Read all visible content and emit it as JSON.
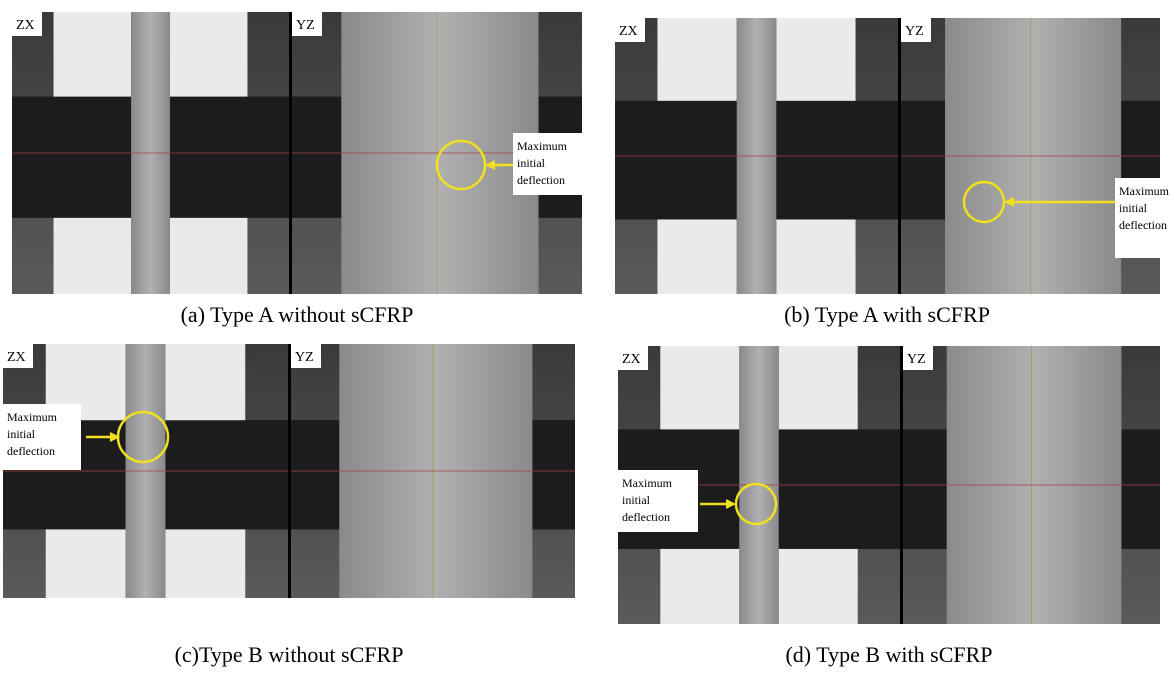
{
  "panels": [
    {
      "caption": "(a) Type A without sCFRP",
      "views": [
        "ZX",
        "YZ"
      ],
      "annotation": [
        "Maximum",
        "initial",
        "deflection"
      ]
    },
    {
      "caption": "(b) Type A with sCFRP",
      "views": [
        "ZX",
        "YZ"
      ],
      "annotation": [
        "Maximum",
        "initial",
        "deflection"
      ]
    },
    {
      "caption": "(c)Type B without sCFRP",
      "views": [
        "ZX",
        "YZ"
      ],
      "annotation": [
        "Maximum",
        "initial",
        "deflection"
      ]
    },
    {
      "caption": "(d) Type B with sCFRP",
      "views": [
        "ZX",
        "YZ"
      ],
      "annotation": [
        "Maximum",
        "initial",
        "deflection"
      ]
    }
  ]
}
